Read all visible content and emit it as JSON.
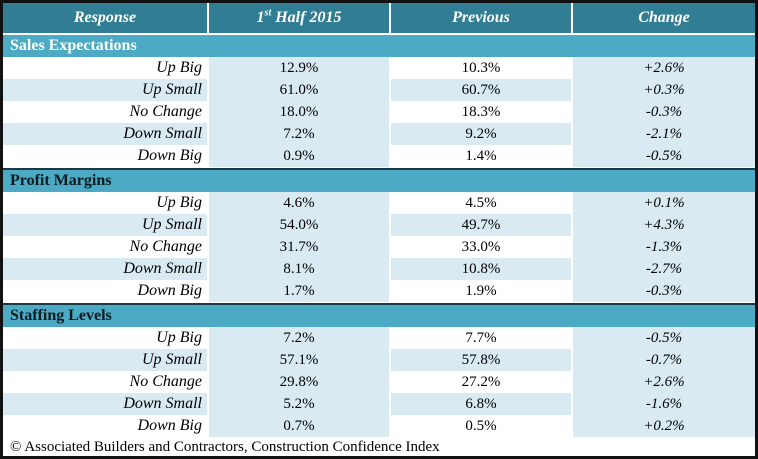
{
  "colors": {
    "header_bg": "#317E94",
    "section_bg": "#4CAAC4",
    "band_blue": "#D9EAF3",
    "dark_rule": "#1B3945",
    "border": "#111111"
  },
  "header": {
    "response": "Response",
    "half_prefix": "1",
    "half_sup": "st",
    "half_suffix": " Half 2015",
    "previous": "Previous",
    "change": "Change"
  },
  "sections": [
    {
      "title": "Sales Expectations",
      "rows": [
        {
          "response": "Up Big",
          "current": "12.9%",
          "previous": "10.3%",
          "change": "+2.6%"
        },
        {
          "response": "Up Small",
          "current": "61.0%",
          "previous": "60.7%",
          "change": "+0.3%"
        },
        {
          "response": "No Change",
          "current": "18.0%",
          "previous": "18.3%",
          "change": "-0.3%"
        },
        {
          "response": "Down Small",
          "current": "7.2%",
          "previous": "9.2%",
          "change": "-2.1%"
        },
        {
          "response": "Down Big",
          "current": "0.9%",
          "previous": "1.4%",
          "change": "-0.5%"
        }
      ]
    },
    {
      "title": "Profit Margins",
      "rows": [
        {
          "response": "Up Big",
          "current": "4.6%",
          "previous": "4.5%",
          "change": "+0.1%"
        },
        {
          "response": "Up Small",
          "current": "54.0%",
          "previous": "49.7%",
          "change": "+4.3%"
        },
        {
          "response": "No Change",
          "current": "31.7%",
          "previous": "33.0%",
          "change": "-1.3%"
        },
        {
          "response": "Down Small",
          "current": "8.1%",
          "previous": "10.8%",
          "change": "-2.7%"
        },
        {
          "response": "Down Big",
          "current": "1.7%",
          "previous": "1.9%",
          "change": "-0.3%"
        }
      ]
    },
    {
      "title": "Staffing Levels",
      "rows": [
        {
          "response": "Up Big",
          "current": "7.2%",
          "previous": "7.7%",
          "change": "-0.5%"
        },
        {
          "response": "Up Small",
          "current": "57.1%",
          "previous": "57.8%",
          "change": "-0.7%"
        },
        {
          "response": "No Change",
          "current": "29.8%",
          "previous": "27.2%",
          "change": "+2.6%"
        },
        {
          "response": "Down Small",
          "current": "5.2%",
          "previous": "6.8%",
          "change": "-1.6%"
        },
        {
          "response": "Down Big",
          "current": "0.7%",
          "previous": "0.5%",
          "change": "+0.2%"
        }
      ]
    }
  ],
  "footer": "© Associated Builders and Contractors, Construction Confidence Index",
  "chart_data": {
    "type": "table",
    "title": "Construction Confidence Index",
    "columns": [
      "Response",
      "1st Half 2015",
      "Previous",
      "Change"
    ],
    "units": "percent",
    "sections": [
      {
        "name": "Sales Expectations",
        "rows": [
          [
            "Up Big",
            12.9,
            10.3,
            2.6
          ],
          [
            "Up Small",
            61.0,
            60.7,
            0.3
          ],
          [
            "No Change",
            18.0,
            18.3,
            -0.3
          ],
          [
            "Down Small",
            7.2,
            9.2,
            -2.1
          ],
          [
            "Down Big",
            0.9,
            1.4,
            -0.5
          ]
        ]
      },
      {
        "name": "Profit Margins",
        "rows": [
          [
            "Up Big",
            4.6,
            4.5,
            0.1
          ],
          [
            "Up Small",
            54.0,
            49.7,
            4.3
          ],
          [
            "No Change",
            31.7,
            33.0,
            -1.3
          ],
          [
            "Down Small",
            8.1,
            10.8,
            -2.7
          ],
          [
            "Down Big",
            1.7,
            1.9,
            -0.3
          ]
        ]
      },
      {
        "name": "Staffing Levels",
        "rows": [
          [
            "Up Big",
            7.2,
            7.7,
            -0.5
          ],
          [
            "Up Small",
            57.1,
            57.8,
            -0.7
          ],
          [
            "No Change",
            29.8,
            27.2,
            2.6
          ],
          [
            "Down Small",
            5.2,
            6.8,
            -1.6
          ],
          [
            "Down Big",
            0.7,
            0.5,
            0.2
          ]
        ]
      }
    ],
    "source": "© Associated Builders and Contractors, Construction Confidence Index"
  }
}
